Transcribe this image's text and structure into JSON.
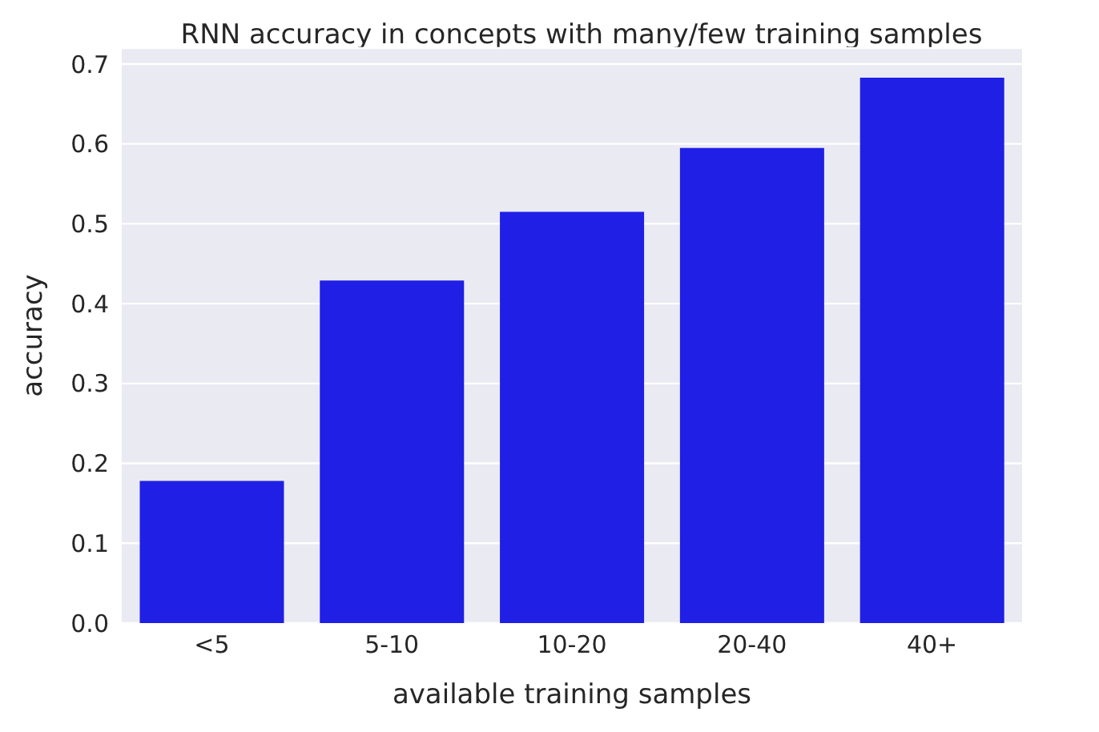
{
  "chart_data": {
    "type": "bar",
    "title": "RNN accuracy in concepts with many/few training samples",
    "xlabel": "available training samples",
    "ylabel": "accuracy",
    "categories": [
      "<5",
      "5-10",
      "10-20",
      "20-40",
      "40+"
    ],
    "values": [
      0.178,
      0.429,
      0.515,
      0.595,
      0.683
    ],
    "color": "#1f1fe6",
    "ylim": [
      0,
      0.72
    ],
    "yticks": [
      {
        "value": 0,
        "label": "0.0"
      },
      0.1,
      0.2,
      0.3,
      0.4,
      0.5,
      0.6,
      0.7
    ],
    "grid": "y"
  }
}
